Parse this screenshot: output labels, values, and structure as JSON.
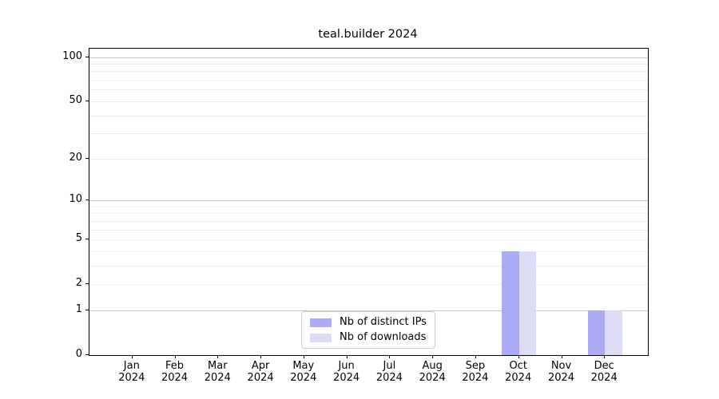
{
  "chart_data": {
    "type": "bar",
    "title": "teal.builder 2024",
    "categories": [
      "Jan",
      "Feb",
      "Mar",
      "Apr",
      "May",
      "Jun",
      "Jul",
      "Aug",
      "Sep",
      "Oct",
      "Nov",
      "Dec"
    ],
    "x_sub_label": "2024",
    "series": [
      {
        "name": "Nb of distinct IPs",
        "color": "#aaaaf5",
        "values": [
          0,
          0,
          0,
          0,
          0,
          0,
          0,
          0,
          0,
          4,
          0,
          1
        ]
      },
      {
        "name": "Nb of downloads",
        "color": "#dcdcf7",
        "values": [
          0,
          0,
          0,
          0,
          0,
          0,
          0,
          0,
          0,
          4,
          0,
          1
        ]
      }
    ],
    "yscale": "log1p",
    "ylim": [
      0,
      114
    ],
    "y_ticks": [
      0,
      1,
      2,
      5,
      10,
      20,
      50,
      100
    ],
    "y_major_gridlines": [
      1,
      10,
      100
    ],
    "y_minor_gridlines": [
      2,
      3,
      4,
      5,
      6,
      7,
      8,
      9,
      20,
      30,
      40,
      50,
      60,
      70,
      80,
      90
    ],
    "grid": true,
    "legend_position": "lower center",
    "colors": {
      "major_grid": "#c8c8c8",
      "minor_grid": "#ececec",
      "axis": "#000000",
      "text": "#000000",
      "legend_border": "#cccccc"
    }
  }
}
